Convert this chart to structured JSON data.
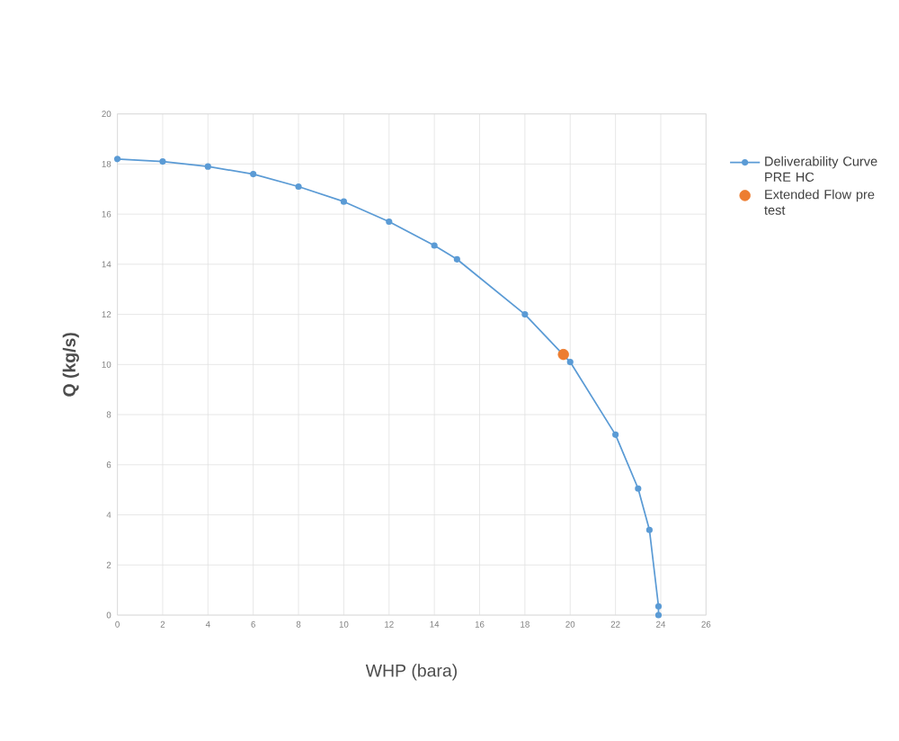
{
  "chart_data": {
    "type": "line",
    "xlabel": "WHP (bara)",
    "ylabel": "Q (kg/s)",
    "xlim": [
      0,
      26
    ],
    "xticks": [
      0,
      2,
      4,
      6,
      8,
      10,
      12,
      14,
      16,
      18,
      20,
      22,
      24,
      26
    ],
    "ylim": [
      0,
      20
    ],
    "yticks": [
      0,
      2,
      4,
      6,
      8,
      10,
      12,
      14,
      16,
      18,
      20
    ],
    "grid": true,
    "legend": "right",
    "marker": "circle",
    "line_style": "solid",
    "series": [
      {
        "name": "Deliverability Curve PRE HC",
        "color": "#5b9bd5",
        "x": [
          0,
          2,
          4,
          6,
          8,
          10,
          12,
          14,
          15,
          18,
          20,
          22,
          23,
          23.5,
          23.9,
          23.9
        ],
        "values": [
          18.2,
          18.1,
          17.9,
          17.6,
          17.1,
          16.5,
          15.7,
          14.75,
          14.2,
          12.0,
          10.1,
          7.2,
          5.05,
          3.4,
          0.35,
          0.0
        ]
      },
      {
        "name": "Extended Flow pre test",
        "type": "scatter",
        "color": "#ed7d31",
        "x": [
          19.7
        ],
        "values": [
          10.4
        ]
      }
    ]
  }
}
